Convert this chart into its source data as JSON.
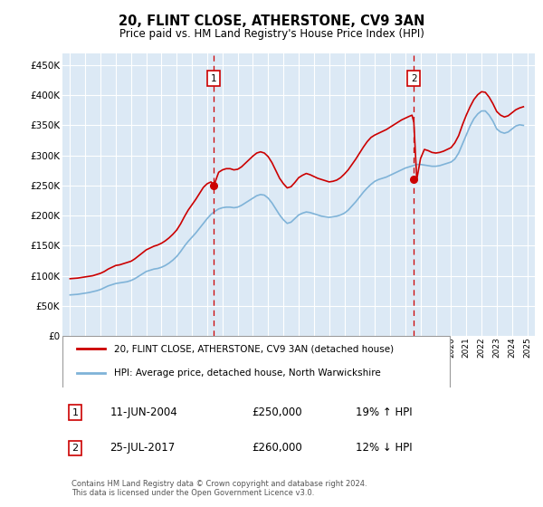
{
  "title": "20, FLINT CLOSE, ATHERSTONE, CV9 3AN",
  "subtitle": "Price paid vs. HM Land Registry's House Price Index (HPI)",
  "ytick_values": [
    0,
    50000,
    100000,
    150000,
    200000,
    250000,
    300000,
    350000,
    400000,
    450000
  ],
  "ylim": [
    0,
    470000
  ],
  "xlim_start": 1994.5,
  "xlim_end": 2025.5,
  "background_color": "#dce9f5",
  "red_line_color": "#cc0000",
  "blue_line_color": "#7fb3d8",
  "grid_color": "#ffffff",
  "marker1_date": 2004.44,
  "marker1_value": 250000,
  "marker2_date": 2017.56,
  "marker2_value": 260000,
  "legend_entries": [
    "20, FLINT CLOSE, ATHERSTONE, CV9 3AN (detached house)",
    "HPI: Average price, detached house, North Warwickshire"
  ],
  "copyright": "Contains HM Land Registry data © Crown copyright and database right 2024.\nThis data is licensed under the Open Government Licence v3.0.",
  "hpi_years": [
    1995.0,
    1995.25,
    1995.5,
    1995.75,
    1996.0,
    1996.25,
    1996.5,
    1996.75,
    1997.0,
    1997.25,
    1997.5,
    1997.75,
    1998.0,
    1998.25,
    1998.5,
    1998.75,
    1999.0,
    1999.25,
    1999.5,
    1999.75,
    2000.0,
    2000.25,
    2000.5,
    2000.75,
    2001.0,
    2001.25,
    2001.5,
    2001.75,
    2002.0,
    2002.25,
    2002.5,
    2002.75,
    2003.0,
    2003.25,
    2003.5,
    2003.75,
    2004.0,
    2004.25,
    2004.5,
    2004.75,
    2005.0,
    2005.25,
    2005.5,
    2005.75,
    2006.0,
    2006.25,
    2006.5,
    2006.75,
    2007.0,
    2007.25,
    2007.5,
    2007.75,
    2008.0,
    2008.25,
    2008.5,
    2008.75,
    2009.0,
    2009.25,
    2009.5,
    2009.75,
    2010.0,
    2010.25,
    2010.5,
    2010.75,
    2011.0,
    2011.25,
    2011.5,
    2011.75,
    2012.0,
    2012.25,
    2012.5,
    2012.75,
    2013.0,
    2013.25,
    2013.5,
    2013.75,
    2014.0,
    2014.25,
    2014.5,
    2014.75,
    2015.0,
    2015.25,
    2015.5,
    2015.75,
    2016.0,
    2016.25,
    2016.5,
    2016.75,
    2017.0,
    2017.25,
    2017.5,
    2017.75,
    2018.0,
    2018.25,
    2018.5,
    2018.75,
    2019.0,
    2019.25,
    2019.5,
    2019.75,
    2020.0,
    2020.25,
    2020.5,
    2020.75,
    2021.0,
    2021.25,
    2021.5,
    2021.75,
    2022.0,
    2022.25,
    2022.5,
    2022.75,
    2023.0,
    2023.25,
    2023.5,
    2023.75,
    2024.0,
    2024.25,
    2024.5,
    2024.75
  ],
  "hpi_vals": [
    68000,
    68500,
    69000,
    70000,
    71000,
    72000,
    73500,
    75000,
    77000,
    80000,
    83000,
    85000,
    87000,
    88000,
    89000,
    90000,
    92000,
    95000,
    99000,
    103000,
    107000,
    109000,
    111000,
    112000,
    114000,
    117000,
    121000,
    126000,
    132000,
    140000,
    149000,
    157000,
    164000,
    171000,
    179000,
    187000,
    195000,
    202000,
    207000,
    211000,
    213000,
    214000,
    214000,
    213000,
    214000,
    217000,
    221000,
    225000,
    229000,
    233000,
    235000,
    234000,
    229000,
    221000,
    211000,
    201000,
    193000,
    187000,
    189000,
    195000,
    201000,
    204000,
    206000,
    205000,
    203000,
    201000,
    199000,
    198000,
    197000,
    198000,
    199000,
    201000,
    204000,
    209000,
    216000,
    223000,
    231000,
    239000,
    246000,
    252000,
    257000,
    260000,
    262000,
    264000,
    267000,
    270000,
    273000,
    276000,
    279000,
    281000,
    283000,
    285000,
    285000,
    284000,
    283000,
    282000,
    282000,
    283000,
    285000,
    287000,
    289000,
    294000,
    304000,
    319000,
    334000,
    349000,
    361000,
    369000,
    374000,
    374000,
    367000,
    357000,
    344000,
    339000,
    337000,
    339000,
    344000,
    349000,
    351000,
    350000
  ],
  "price_years": [
    1995.0,
    1995.25,
    1995.5,
    1995.75,
    1996.0,
    1996.25,
    1996.5,
    1996.75,
    1997.0,
    1997.25,
    1997.5,
    1997.75,
    1998.0,
    1998.25,
    1998.5,
    1998.75,
    1999.0,
    1999.25,
    1999.5,
    1999.75,
    2000.0,
    2000.25,
    2000.5,
    2000.75,
    2001.0,
    2001.25,
    2001.5,
    2001.75,
    2002.0,
    2002.25,
    2002.5,
    2002.75,
    2003.0,
    2003.25,
    2003.5,
    2003.75,
    2004.0,
    2004.25,
    2004.44,
    2004.75,
    2005.0,
    2005.25,
    2005.5,
    2005.75,
    2006.0,
    2006.25,
    2006.5,
    2006.75,
    2007.0,
    2007.25,
    2007.5,
    2007.75,
    2008.0,
    2008.25,
    2008.5,
    2008.75,
    2009.0,
    2009.25,
    2009.5,
    2009.75,
    2010.0,
    2010.25,
    2010.5,
    2010.75,
    2011.0,
    2011.25,
    2011.5,
    2011.75,
    2012.0,
    2012.25,
    2012.5,
    2012.75,
    2013.0,
    2013.25,
    2013.5,
    2013.75,
    2014.0,
    2014.25,
    2014.5,
    2014.75,
    2015.0,
    2015.25,
    2015.5,
    2015.75,
    2016.0,
    2016.25,
    2016.5,
    2016.75,
    2017.0,
    2017.25,
    2017.44,
    2017.56,
    2017.75,
    2018.0,
    2018.25,
    2018.5,
    2018.75,
    2019.0,
    2019.25,
    2019.5,
    2019.75,
    2020.0,
    2020.25,
    2020.5,
    2020.75,
    2021.0,
    2021.25,
    2021.5,
    2021.75,
    2022.0,
    2022.25,
    2022.5,
    2022.75,
    2023.0,
    2023.25,
    2023.5,
    2023.75,
    2024.0,
    2024.25,
    2024.5,
    2024.75
  ],
  "price_vals": [
    95000,
    95500,
    96000,
    97000,
    98000,
    99000,
    100000,
    102000,
    104000,
    107000,
    111000,
    114000,
    117000,
    118000,
    120000,
    122000,
    124000,
    128000,
    133000,
    138000,
    143000,
    146000,
    149000,
    151000,
    154000,
    158000,
    163000,
    169000,
    176000,
    186000,
    198000,
    209000,
    218000,
    227000,
    237000,
    247000,
    253000,
    256000,
    250000,
    272000,
    276000,
    278000,
    278000,
    276000,
    277000,
    281000,
    287000,
    293000,
    299000,
    304000,
    306000,
    304000,
    298000,
    288000,
    275000,
    262000,
    253000,
    246000,
    248000,
    255000,
    263000,
    267000,
    270000,
    268000,
    265000,
    262000,
    260000,
    258000,
    256000,
    257000,
    259000,
    263000,
    269000,
    276000,
    285000,
    294000,
    304000,
    314000,
    323000,
    330000,
    334000,
    337000,
    340000,
    343000,
    347000,
    351000,
    355000,
    359000,
    362000,
    365000,
    367000,
    355000,
    260000,
    295000,
    310000,
    308000,
    305000,
    304000,
    305000,
    307000,
    310000,
    313000,
    321000,
    333000,
    351000,
    367000,
    381000,
    393000,
    401000,
    406000,
    405000,
    397000,
    386000,
    373000,
    367000,
    364000,
    366000,
    371000,
    376000,
    379000,
    381000
  ]
}
